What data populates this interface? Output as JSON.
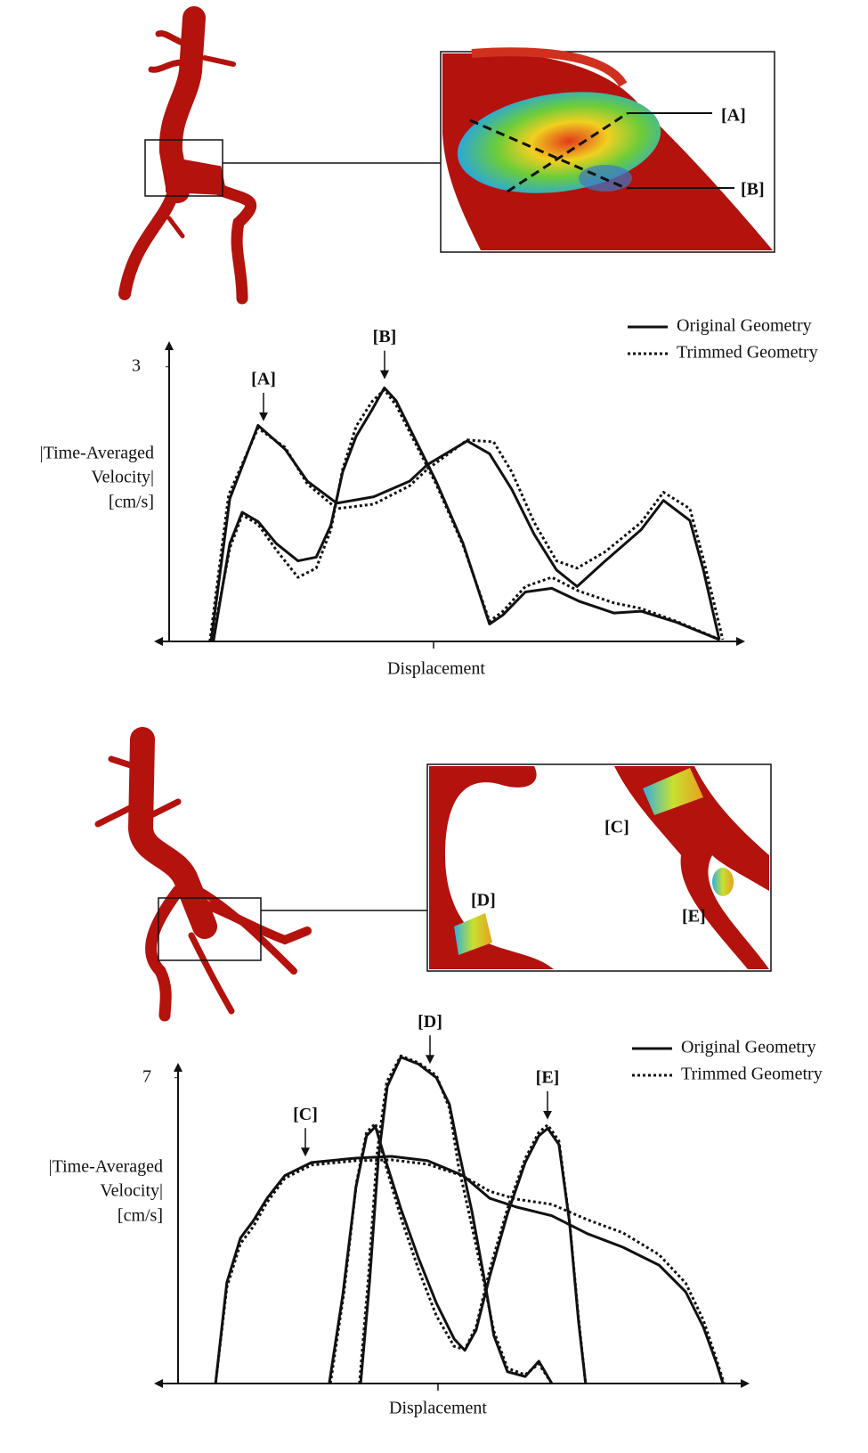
{
  "chart_data": [
    {
      "type": "line",
      "ylabel": [
        "|Time-Averaged",
        "Velocity|",
        "[cm/s]"
      ],
      "xlabel": "Displacement",
      "xlim": [
        0,
        100
      ],
      "ylim": [
        0,
        3.26
      ],
      "yticks": [
        3
      ],
      "legend": [
        {
          "label": "Original Geometry",
          "dash": "solid"
        },
        {
          "label": "Trimmed Geometry",
          "dash": "dotted"
        }
      ],
      "series": [
        {
          "name": "[A]",
          "dash": "solid",
          "color": "#111111",
          "x": [
            9.4,
            12.6,
            17.4,
            22.0,
            25.8,
            30.8,
            37.1,
            43.2,
            46.2,
            53.0,
            56.8,
            60.6,
            64.4,
            68.2,
            71.7,
            76.5,
            82.6,
            86.4,
            90.9,
            93.2,
            95.9
          ],
          "values": [
            0,
            1.56,
            2.36,
            2.1,
            1.75,
            1.51,
            1.58,
            1.75,
            1.93,
            2.19,
            2.05,
            1.66,
            1.17,
            0.78,
            0.6,
            0.88,
            1.22,
            1.54,
            1.32,
            0.78,
            0.02
          ]
        },
        {
          "name": "[B]",
          "dash": "solid",
          "color": "#111111",
          "x": [
            9.8,
            12.6,
            14.7,
            17.4,
            20.5,
            24.2,
            27.3,
            29.8,
            31.8,
            34.1,
            36.8,
            38.9,
            40.9,
            43.9,
            47.7,
            52.3,
            56.8,
            59.1,
            62.9,
            67.4,
            72.0,
            78.0,
            82.6,
            88.6,
            95.9
          ],
          "values": [
            0,
            1.07,
            1.41,
            1.31,
            1.07,
            0.88,
            0.92,
            1.27,
            1.85,
            2.24,
            2.53,
            2.77,
            2.63,
            2.24,
            1.75,
            1.07,
            0.19,
            0.29,
            0.54,
            0.58,
            0.44,
            0.31,
            0.33,
            0.21,
            0.02
          ]
        },
        {
          "name": "[A]",
          "dash": "dotted",
          "color": "#111111",
          "x": [
            9.2,
            12.4,
            17.4,
            22.0,
            25.8,
            30.8,
            37.1,
            43.2,
            46.2,
            53.0,
            57.5,
            60.6,
            64.4,
            68.2,
            71.7,
            76.5,
            82.6,
            86.4,
            90.9,
            93.2,
            96.5
          ],
          "values": [
            0,
            1.6,
            2.33,
            2.12,
            1.72,
            1.45,
            1.5,
            1.7,
            1.88,
            2.2,
            2.18,
            1.85,
            1.3,
            0.88,
            0.8,
            0.98,
            1.3,
            1.63,
            1.45,
            0.9,
            0.02
          ]
        },
        {
          "name": "[B]",
          "dash": "dotted",
          "color": "#111111",
          "x": [
            9.6,
            12.6,
            14.7,
            17.4,
            20.5,
            24.2,
            27.3,
            29.8,
            31.8,
            34.1,
            36.8,
            38.9,
            40.9,
            43.9,
            47.7,
            52.3,
            56.8,
            59.1,
            62.9,
            67.4,
            72.0,
            78.0,
            82.6,
            88.6,
            96.0
          ],
          "values": [
            0,
            1.02,
            1.38,
            1.28,
            1.0,
            0.7,
            0.8,
            1.22,
            1.88,
            2.35,
            2.62,
            2.75,
            2.58,
            2.2,
            1.72,
            1.05,
            0.22,
            0.33,
            0.6,
            0.7,
            0.55,
            0.42,
            0.36,
            0.22,
            0.02
          ]
        }
      ]
    },
    {
      "type": "line",
      "ylabel": [
        "|Time-Averaged",
        "Velocity|",
        "[cm/s]"
      ],
      "xlabel": "Displacement",
      "xlim": [
        0,
        100
      ],
      "ylim": [
        0,
        7.3
      ],
      "yticks": [
        7
      ],
      "legend": [
        {
          "label": "Original Geometry",
          "dash": "solid"
        },
        {
          "label": "Trimmed Geometry",
          "dash": "dotted"
        }
      ],
      "series": [
        {
          "name": "[C]",
          "dash": "solid",
          "color": "#111111",
          "x": [
            10.1,
            12.0,
            14.3,
            16.5,
            18.8,
            21.8,
            26.3,
            33.8,
            39.8,
            45.9,
            51.9,
            56.4,
            60.9,
            66.9,
            72.9,
            78.9,
            85.0,
            89.5,
            92.5,
            94.7,
            95.8
          ],
          "values": [
            0,
            2.31,
            3.33,
            3.73,
            4.24,
            4.76,
            5.06,
            5.16,
            5.2,
            5.1,
            4.76,
            4.24,
            4.04,
            3.84,
            3.43,
            3.12,
            2.71,
            2.1,
            1.29,
            0.47,
            0
          ]
        },
        {
          "name": "[D]",
          "dash": "solid",
          "color": "#111111",
          "x": [
            34.6,
            36.1,
            37.6,
            39.1,
            41.4,
            44.4,
            47.4,
            49.6,
            51.1,
            53.4,
            55.6,
            57.1,
            59.4,
            62.4,
            64.7,
            66.9
          ],
          "values": [
            0,
            2.31,
            5.16,
            6.8,
            7.47,
            7.31,
            7.0,
            6.39,
            5.37,
            3.94,
            2.31,
            1.1,
            0.27,
            0.16,
            0.51,
            0
          ]
        },
        {
          "name": "[E]",
          "dash": "solid",
          "color": "#111111",
          "x": [
            29.3,
            31.6,
            33.8,
            35.6,
            37.1,
            38.6,
            41.4,
            44.4,
            47.4,
            50.4,
            52.2,
            54.1,
            56.4,
            59.4,
            62.4,
            64.7,
            66.2,
            68.1,
            69.9,
            71.4,
            72.6
          ],
          "values": [
            0,
            2.04,
            4.49,
            5.67,
            5.88,
            5.2,
            4.0,
            2.86,
            1.84,
            1.02,
            0.76,
            1.22,
            2.45,
            3.88,
            5.06,
            5.67,
            5.84,
            5.47,
            3.67,
            1.43,
            0
          ]
        },
        {
          "name": "[C]",
          "dash": "dotted",
          "color": "#111111",
          "x": [
            10.1,
            12.0,
            14.3,
            16.5,
            18.8,
            21.8,
            26.3,
            33.8,
            39.8,
            45.9,
            51.9,
            56.4,
            60.9,
            66.9,
            72.9,
            78.9,
            85.0,
            89.5,
            92.5,
            94.7,
            96.0
          ],
          "values": [
            0,
            2.2,
            3.2,
            3.6,
            4.15,
            4.7,
            5.0,
            5.1,
            5.12,
            5.02,
            4.75,
            4.4,
            4.22,
            4.1,
            3.75,
            3.45,
            2.95,
            2.3,
            1.45,
            0.55,
            0
          ]
        },
        {
          "name": "[D]",
          "dash": "dotted",
          "color": "#111111",
          "x": [
            34.4,
            35.9,
            37.4,
            39.0,
            41.4,
            44.4,
            47.4,
            49.6,
            51.1,
            53.4,
            55.6,
            57.1,
            59.4,
            62.4,
            64.7,
            66.9
          ],
          "values": [
            0,
            2.4,
            5.3,
            6.9,
            7.5,
            7.34,
            7.05,
            6.3,
            5.0,
            3.6,
            2.2,
            1.2,
            0.35,
            0.2,
            0.45,
            0
          ]
        },
        {
          "name": "[E]",
          "dash": "dotted",
          "color": "#111111",
          "x": [
            29.5,
            31.8,
            33.9,
            35.6,
            37.1,
            38.6,
            41.4,
            44.4,
            47.4,
            50.4,
            52.2,
            54.1,
            56.4,
            59.4,
            62.4,
            64.7,
            66.2,
            68.1,
            69.9,
            71.4,
            72.6
          ],
          "values": [
            0,
            2.1,
            4.6,
            5.75,
            5.95,
            5.1,
            3.8,
            2.6,
            1.55,
            0.85,
            0.78,
            1.3,
            2.6,
            4.0,
            5.15,
            5.75,
            5.92,
            5.55,
            3.7,
            1.5,
            0
          ]
        }
      ]
    }
  ]
}
